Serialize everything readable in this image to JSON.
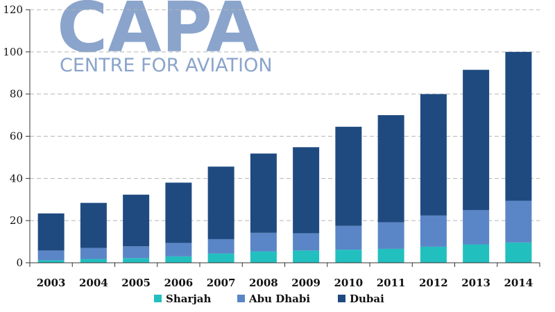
{
  "logo": {
    "main": "CAPA",
    "sub": "CENTRE FOR AVIATION"
  },
  "chart_data": {
    "type": "bar",
    "stacked": true,
    "categories": [
      "2003",
      "2004",
      "2005",
      "2006",
      "2007",
      "2008",
      "2009",
      "2010",
      "2011",
      "2012",
      "2013",
      "2014"
    ],
    "series": [
      {
        "name": "Sharjah",
        "color": "#22bfbf",
        "values": [
          1.2,
          1.8,
          2.2,
          3.0,
          4.4,
          5.4,
          5.8,
          6.2,
          6.6,
          7.6,
          8.7,
          9.6
        ]
      },
      {
        "name": "Abu Dhabi",
        "color": "#5a86c7",
        "values": [
          4.6,
          5.2,
          5.6,
          6.4,
          6.8,
          8.8,
          8.2,
          11.3,
          12.6,
          14.8,
          16.3,
          19.8
        ]
      },
      {
        "name": "Dubai",
        "color": "#1f4a80",
        "values": [
          17.6,
          21.4,
          24.5,
          28.6,
          34.4,
          37.6,
          40.8,
          47.0,
          50.8,
          57.6,
          66.5,
          70.6
        ]
      }
    ],
    "ylim": [
      0,
      120
    ],
    "yticks": [
      "0",
      "20",
      "40",
      "60",
      "80",
      "100",
      "120"
    ],
    "grid": true,
    "legend_position": "bottom"
  }
}
